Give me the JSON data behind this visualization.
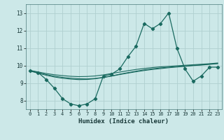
{
  "title": "",
  "xlabel": "Humidex (Indice chaleur)",
  "bg_color": "#cce8e8",
  "grid_color": "#b0d0d0",
  "line_color": "#1a6a60",
  "xlim": [
    -0.5,
    23.5
  ],
  "ylim": [
    7.5,
    13.5
  ],
  "yticks": [
    8,
    9,
    10,
    11,
    12,
    13
  ],
  "xticks": [
    0,
    1,
    2,
    3,
    4,
    5,
    6,
    7,
    8,
    9,
    10,
    11,
    12,
    13,
    14,
    15,
    16,
    17,
    18,
    19,
    20,
    21,
    22,
    23
  ],
  "series_main": [
    9.7,
    9.6,
    9.2,
    8.7,
    8.1,
    7.8,
    7.7,
    7.8,
    8.1,
    9.4,
    9.5,
    9.8,
    10.5,
    11.1,
    12.4,
    12.1,
    12.4,
    13.0,
    11.0,
    9.8,
    9.1,
    9.4,
    9.9,
    9.9
  ],
  "series_trend1": [
    9.7,
    9.59,
    9.48,
    9.39,
    9.32,
    9.27,
    9.24,
    9.23,
    9.26,
    9.32,
    9.4,
    9.5,
    9.59,
    9.67,
    9.75,
    9.81,
    9.86,
    9.9,
    9.94,
    9.97,
    10.01,
    10.04,
    10.08,
    10.12
  ],
  "series_trend2": [
    9.72,
    9.63,
    9.54,
    9.47,
    9.42,
    9.38,
    9.36,
    9.37,
    9.4,
    9.46,
    9.54,
    9.62,
    9.7,
    9.77,
    9.83,
    9.88,
    9.92,
    9.95,
    9.98,
    10.01,
    10.04,
    10.07,
    10.1,
    10.14
  ],
  "series_trend3": [
    9.68,
    9.56,
    9.44,
    9.34,
    9.27,
    9.22,
    9.19,
    9.2,
    9.24,
    9.31,
    9.39,
    9.48,
    9.56,
    9.64,
    9.71,
    9.77,
    9.82,
    9.87,
    9.91,
    9.95,
    9.99,
    10.02,
    10.06,
    10.1
  ]
}
